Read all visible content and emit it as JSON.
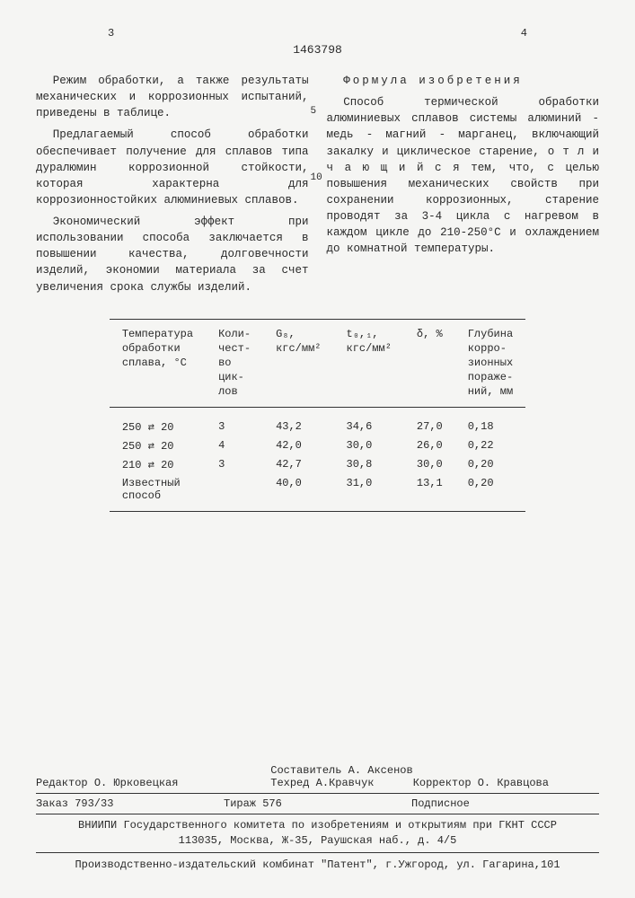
{
  "page_left": "3",
  "page_right": "4",
  "doc_number": "1463798",
  "left_col": {
    "p1": "Режим обработки, а также результаты механических и коррозионных испытаний, приведены в таблице.",
    "p2": "Предлагаемый способ обработки обеспечивает получение для сплавов типа дуралюмин коррозионной стойкости, которая характерна для коррозионностойких алюминиевых сплавов.",
    "p3": "Экономический эффект при использовании способа заключается в повышении качества, долговечности изделий, экономии материала за счет увеличения срока службы изделий."
  },
  "right_col": {
    "formula_title": "Формула изобретения",
    "p1": "Способ термической обработки алюминиевых сплавов системы алюминий - медь - магний - марганец, включающий закалку и циклическое старение, о т л и ч а ю щ и й с я  тем, что, с целью повышения механических свойств при сохранении коррозионных, старение проводят за 3-4 цикла с нагревом в каждом цикле до 210-250°С и охлаждением до комнатной температуры."
  },
  "line5": "5",
  "line10": "10",
  "table": {
    "headers": {
      "c1": "Температура\nобработки\nсплава, °С",
      "c2": "Коли-\nчест-\nво\nцик-\nлов",
      "c3": "G₈,\nкгс/мм²",
      "c4": "t₀,₁,\nкгс/мм²",
      "c5": "δ, %",
      "c6": "Глубина\nкорро-\nзионных\nпораже-\nний, мм"
    },
    "rows": [
      {
        "c1": "250 ⇄ 20",
        "c2": "3",
        "c3": "43,2",
        "c4": "34,6",
        "c5": "27,0",
        "c6": "0,18"
      },
      {
        "c1": "250 ⇄ 20",
        "c2": "4",
        "c3": "42,0",
        "c4": "30,0",
        "c5": "26,0",
        "c6": "0,22"
      },
      {
        "c1": "210 ⇄ 20",
        "c2": "3",
        "c3": "42,7",
        "c4": "30,8",
        "c5": "30,0",
        "c6": "0,20"
      },
      {
        "c1": "Известный\nспособ",
        "c2": "",
        "c3": "40,0",
        "c4": "31,0",
        "c5": "13,1",
        "c6": "0,20"
      }
    ]
  },
  "footer": {
    "editor_label": "Редактор",
    "editor_name": "О. Юрковецкая",
    "compiler_label": "Составитель",
    "compiler_name": "А. Аксенов",
    "techred_label": "Техред",
    "techred_name": "А.Кравчук",
    "corrector_label": "Корректор",
    "corrector_name": "О. Кравцова",
    "order": "Заказ 793/33",
    "tirage": "Тираж 576",
    "subscription": "Подписное",
    "org1": "ВНИИПИ Государственного комитета по изобретениям и открытиям при ГКНТ СССР",
    "org2": "113035, Москва, Ж-35, Раушская наб., д. 4/5",
    "publisher": "Производственно-издательский комбинат \"Патент\", г.Ужгород, ул. Гагарина,101"
  }
}
